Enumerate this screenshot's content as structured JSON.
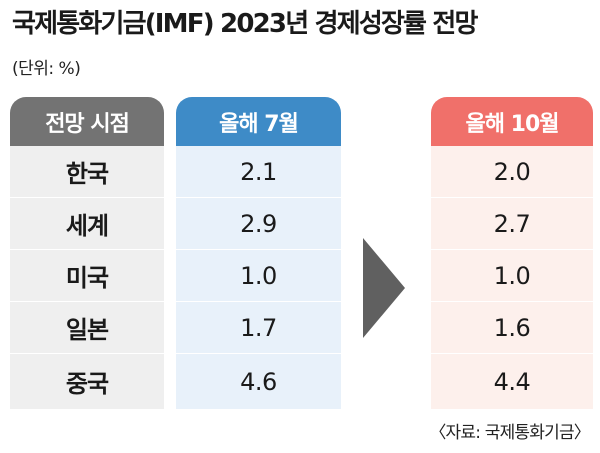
{
  "title": "국제통화기금(IMF) 2023년 경제성장률 전망",
  "unit": "(단위: %)",
  "source": "〈자료: 국제통화기금〉",
  "colors": {
    "category_header": "#737373",
    "july_header": "#3e8bc7",
    "october_header": "#f0706a",
    "arrow": "#606060"
  },
  "chart_data": {
    "type": "table",
    "columns": [
      "전망 시점",
      "올해 7월",
      "올해 10월"
    ],
    "categories": [
      "한국",
      "세계",
      "미국",
      "일본",
      "중국"
    ],
    "series": [
      {
        "name": "올해 7월",
        "values": [
          "2.1",
          "2.9",
          "1.0",
          "1.7",
          "4.6"
        ]
      },
      {
        "name": "올해 10월",
        "values": [
          "2.0",
          "2.7",
          "1.0",
          "1.6",
          "4.4"
        ]
      }
    ]
  }
}
